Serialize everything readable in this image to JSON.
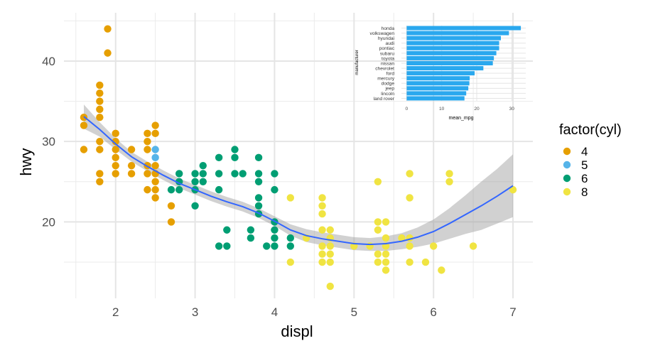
{
  "chart_data": [
    {
      "type": "scatter",
      "xlabel": "displ",
      "ylabel": "hwy",
      "xlim": [
        1.35,
        7.25
      ],
      "ylim": [
        10.5,
        46.0
      ],
      "x_ticks": [
        2,
        3,
        4,
        5,
        6,
        7
      ],
      "x_tick_labels": [
        "2",
        "3",
        "4",
        "5",
        "6",
        "7"
      ],
      "y_ticks": [
        20,
        30,
        40
      ],
      "y_tick_labels": [
        "20",
        "30",
        "40"
      ],
      "grid": true,
      "legend": {
        "title": "factor(cyl)",
        "position": "right",
        "entries": [
          {
            "label": "4",
            "color": "#E69F00"
          },
          {
            "label": "5",
            "color": "#56B4E9"
          },
          {
            "label": "6",
            "color": "#009E73"
          },
          {
            "label": "8",
            "color": "#F0E442"
          }
        ]
      },
      "series": [
        {
          "name": "4",
          "color": "#E69F00",
          "points": [
            [
              1.6,
              33
            ],
            [
              1.6,
              32
            ],
            [
              1.6,
              29
            ],
            [
              1.8,
              37
            ],
            [
              1.8,
              36
            ],
            [
              1.8,
              35
            ],
            [
              1.8,
              34
            ],
            [
              1.8,
              33
            ],
            [
              1.8,
              30
            ],
            [
              1.8,
              29
            ],
            [
              1.8,
              26
            ],
            [
              1.8,
              25
            ],
            [
              1.9,
              44
            ],
            [
              1.9,
              41
            ],
            [
              2.0,
              31
            ],
            [
              2.0,
              30
            ],
            [
              2.0,
              29
            ],
            [
              2.0,
              28
            ],
            [
              2.0,
              27
            ],
            [
              2.0,
              26
            ],
            [
              2.2,
              27
            ],
            [
              2.2,
              26
            ],
            [
              2.2,
              29
            ],
            [
              2.4,
              31
            ],
            [
              2.4,
              30
            ],
            [
              2.4,
              29
            ],
            [
              2.4,
              27
            ],
            [
              2.4,
              26
            ],
            [
              2.4,
              24
            ],
            [
              2.5,
              32
            ],
            [
              2.5,
              31
            ],
            [
              2.5,
              27
            ],
            [
              2.5,
              26
            ],
            [
              2.5,
              25
            ],
            [
              2.5,
              24
            ],
            [
              2.5,
              23
            ],
            [
              2.7,
              22
            ],
            [
              2.7,
              20
            ]
          ]
        },
        {
          "name": "5",
          "color": "#56B4E9",
          "points": [
            [
              2.5,
              29
            ],
            [
              2.5,
              28
            ]
          ]
        },
        {
          "name": "6",
          "color": "#009E73",
          "points": [
            [
              2.7,
              24
            ],
            [
              2.8,
              26
            ],
            [
              2.8,
              25
            ],
            [
              2.8,
              24
            ],
            [
              3.0,
              26
            ],
            [
              3.0,
              25
            ],
            [
              3.0,
              24
            ],
            [
              3.0,
              22
            ],
            [
              3.1,
              27
            ],
            [
              3.1,
              26
            ],
            [
              3.1,
              25
            ],
            [
              3.3,
              28
            ],
            [
              3.3,
              26
            ],
            [
              3.3,
              24
            ],
            [
              3.3,
              17
            ],
            [
              3.4,
              19
            ],
            [
              3.4,
              17
            ],
            [
              3.5,
              29
            ],
            [
              3.5,
              28
            ],
            [
              3.5,
              26
            ],
            [
              3.6,
              26
            ],
            [
              3.7,
              19
            ],
            [
              3.7,
              18
            ],
            [
              3.8,
              28
            ],
            [
              3.8,
              26
            ],
            [
              3.8,
              25
            ],
            [
              3.8,
              23
            ],
            [
              3.8,
              22
            ],
            [
              3.8,
              21
            ],
            [
              3.9,
              17
            ],
            [
              4.0,
              26
            ],
            [
              4.0,
              24
            ],
            [
              4.0,
              20
            ],
            [
              4.0,
              19
            ],
            [
              4.0,
              18
            ],
            [
              4.0,
              17
            ],
            [
              4.2,
              18
            ],
            [
              4.2,
              17
            ]
          ]
        },
        {
          "name": "8",
          "color": "#F0E442",
          "points": [
            [
              4.2,
              23
            ],
            [
              4.2,
              15
            ],
            [
              4.4,
              18
            ],
            [
              4.6,
              23
            ],
            [
              4.6,
              22
            ],
            [
              4.6,
              21
            ],
            [
              4.6,
              19
            ],
            [
              4.6,
              17
            ],
            [
              4.6,
              16
            ],
            [
              4.6,
              15
            ],
            [
              4.7,
              19
            ],
            [
              4.7,
              18
            ],
            [
              4.7,
              17
            ],
            [
              4.7,
              16
            ],
            [
              4.7,
              15
            ],
            [
              4.7,
              12
            ],
            [
              5.0,
              17
            ],
            [
              5.2,
              17
            ],
            [
              5.3,
              25
            ],
            [
              5.3,
              20
            ],
            [
              5.3,
              19
            ],
            [
              5.3,
              16
            ],
            [
              5.3,
              15
            ],
            [
              5.4,
              20
            ],
            [
              5.4,
              18
            ],
            [
              5.4,
              17
            ],
            [
              5.4,
              16
            ],
            [
              5.4,
              15
            ],
            [
              5.4,
              14
            ],
            [
              5.6,
              18
            ],
            [
              5.7,
              26
            ],
            [
              5.7,
              23
            ],
            [
              5.7,
              18
            ],
            [
              5.7,
              17
            ],
            [
              5.7,
              15
            ],
            [
              5.9,
              15
            ],
            [
              6.0,
              17
            ],
            [
              6.1,
              14
            ],
            [
              6.2,
              26
            ],
            [
              6.2,
              25
            ],
            [
              6.5,
              17
            ],
            [
              7.0,
              24
            ]
          ]
        }
      ],
      "smooth": {
        "method": "loess",
        "color": "#3366FF",
        "fit": [
          [
            1.6,
            33.1
          ],
          [
            1.8,
            31.5
          ],
          [
            2.0,
            29.7
          ],
          [
            2.2,
            28.1
          ],
          [
            2.4,
            26.9
          ],
          [
            2.6,
            25.8
          ],
          [
            2.8,
            24.8
          ],
          [
            3.0,
            24.0
          ],
          [
            3.2,
            23.2
          ],
          [
            3.4,
            22.5
          ],
          [
            3.6,
            21.9
          ],
          [
            3.8,
            21.1
          ],
          [
            4.0,
            20.1
          ],
          [
            4.2,
            19.0
          ],
          [
            4.4,
            18.3
          ],
          [
            4.6,
            17.9
          ],
          [
            4.8,
            17.6
          ],
          [
            5.0,
            17.3
          ],
          [
            5.2,
            17.2
          ],
          [
            5.4,
            17.3
          ],
          [
            5.6,
            17.6
          ],
          [
            5.8,
            18.1
          ],
          [
            6.0,
            18.8
          ],
          [
            6.2,
            19.8
          ],
          [
            6.4,
            20.9
          ],
          [
            6.6,
            22.0
          ],
          [
            6.8,
            23.2
          ],
          [
            7.0,
            24.5
          ]
        ],
        "lower": [
          [
            1.6,
            31.6
          ],
          [
            1.8,
            30.6
          ],
          [
            2.0,
            29.0
          ],
          [
            2.2,
            27.5
          ],
          [
            2.4,
            26.3
          ],
          [
            2.6,
            25.2
          ],
          [
            2.8,
            24.2
          ],
          [
            3.0,
            23.4
          ],
          [
            3.2,
            22.6
          ],
          [
            3.4,
            21.9
          ],
          [
            3.6,
            21.3
          ],
          [
            3.8,
            20.5
          ],
          [
            4.0,
            19.5
          ],
          [
            4.2,
            18.3
          ],
          [
            4.4,
            17.5
          ],
          [
            4.6,
            17.1
          ],
          [
            4.8,
            16.8
          ],
          [
            5.0,
            16.5
          ],
          [
            5.2,
            16.4
          ],
          [
            5.4,
            16.4
          ],
          [
            5.6,
            16.6
          ],
          [
            5.8,
            16.9
          ],
          [
            6.0,
            17.3
          ],
          [
            6.2,
            17.9
          ],
          [
            6.4,
            18.5
          ],
          [
            6.6,
            19.0
          ],
          [
            6.8,
            19.8
          ],
          [
            7.0,
            20.6
          ]
        ],
        "upper": [
          [
            1.6,
            34.6
          ],
          [
            1.8,
            32.4
          ],
          [
            2.0,
            30.4
          ],
          [
            2.2,
            28.7
          ],
          [
            2.4,
            27.5
          ],
          [
            2.6,
            26.4
          ],
          [
            2.8,
            25.4
          ],
          [
            3.0,
            24.6
          ],
          [
            3.2,
            23.8
          ],
          [
            3.4,
            23.1
          ],
          [
            3.6,
            22.5
          ],
          [
            3.8,
            21.7
          ],
          [
            4.0,
            20.7
          ],
          [
            4.2,
            19.7
          ],
          [
            4.4,
            19.1
          ],
          [
            4.6,
            18.7
          ],
          [
            4.8,
            18.4
          ],
          [
            5.0,
            18.1
          ],
          [
            5.2,
            18.0
          ],
          [
            5.4,
            18.2
          ],
          [
            5.6,
            18.6
          ],
          [
            5.8,
            19.3
          ],
          [
            6.0,
            20.3
          ],
          [
            6.2,
            21.7
          ],
          [
            6.4,
            23.3
          ],
          [
            6.6,
            25.0
          ],
          [
            6.8,
            26.6
          ],
          [
            7.0,
            28.4
          ]
        ]
      }
    },
    {
      "type": "bar",
      "orientation": "horizontal",
      "xlabel": "mean_mpg",
      "ylabel": "manufacturer",
      "xlim": [
        -1.5,
        34.0
      ],
      "x_ticks": [
        0,
        10,
        20,
        30
      ],
      "x_tick_labels": [
        "0",
        "10",
        "20",
        "30"
      ],
      "color": "#2AA8EE",
      "categories": [
        "honda",
        "volkswagen",
        "hyundai",
        "audi",
        "pontiac",
        "subaru",
        "toyota",
        "nissan",
        "chevrolet",
        "ford",
        "mercury",
        "dodge",
        "jeep",
        "lincoln",
        "land rover"
      ],
      "values": [
        32.6,
        29.2,
        26.9,
        26.4,
        26.4,
        25.6,
        24.9,
        24.6,
        21.9,
        19.4,
        18.0,
        17.9,
        17.6,
        17.0,
        16.5
      ]
    }
  ]
}
